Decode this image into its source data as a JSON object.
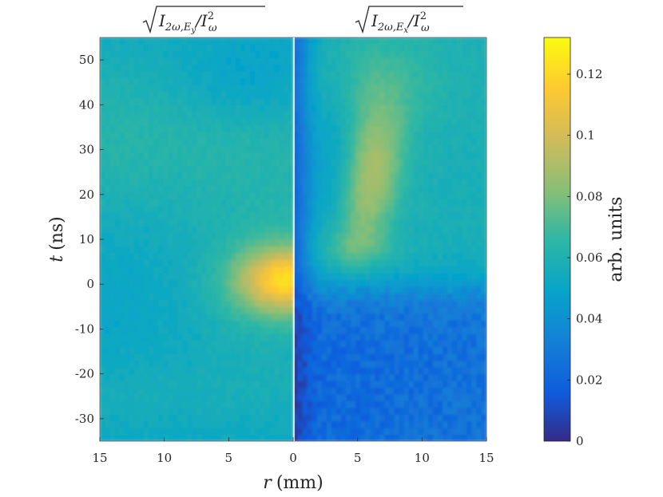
{
  "chart_data": {
    "type": "heatmap",
    "titles": {
      "left_parts": [
        "I",
        "2ω,E",
        "y",
        "/I",
        "2",
        "ω"
      ],
      "right_parts": [
        "I",
        "2ω,E",
        "x",
        "/I",
        "2",
        "ω"
      ]
    },
    "xlabel": {
      "variable": "r",
      "unit": "(mm)"
    },
    "ylabel": {
      "variable": "t",
      "unit": "(ns)"
    },
    "colorbar": {
      "label": "arb. units",
      "range": [
        0,
        0.132
      ],
      "ticks": [
        0,
        0.02,
        0.04,
        0.06,
        0.08,
        0.1,
        0.12
      ],
      "tick_labels": [
        "0",
        "0.02",
        "0.04",
        "0.06",
        "0.08",
        "0.1",
        "0.12"
      ],
      "colormap": "parula"
    },
    "x_ticks": [
      -15,
      -10,
      -5,
      0,
      5,
      10,
      15
    ],
    "x_tick_labels": [
      "15",
      "10",
      "5",
      "0",
      "5",
      "10",
      "15"
    ],
    "x_range": [
      -15,
      15
    ],
    "y_ticks": [
      50,
      40,
      30,
      20,
      10,
      0,
      -10,
      -20,
      -30
    ],
    "y_tick_labels": [
      "50",
      "40",
      "30",
      "20",
      "10",
      "0",
      "-10",
      "-20",
      "-30"
    ],
    "y_range": [
      -35,
      55
    ],
    "panels": [
      {
        "name": "E_y",
        "r_range_mm": [
          0,
          15
        ],
        "side": "left",
        "background_value": 0.055,
        "peak": {
          "r_mm": 0.5,
          "t_ns": 1,
          "value": 0.112
        }
      },
      {
        "name": "E_x",
        "r_range_mm": [
          0,
          15
        ],
        "side": "right",
        "background_value": 0.055,
        "low_region": {
          "t_ns_below": -5,
          "value": 0.022
        },
        "ridge": {
          "r_mm_start": 3,
          "t_ns_start": 5,
          "r_mm_end": 6,
          "t_ns_end": 50,
          "value": 0.09
        }
      }
    ]
  }
}
